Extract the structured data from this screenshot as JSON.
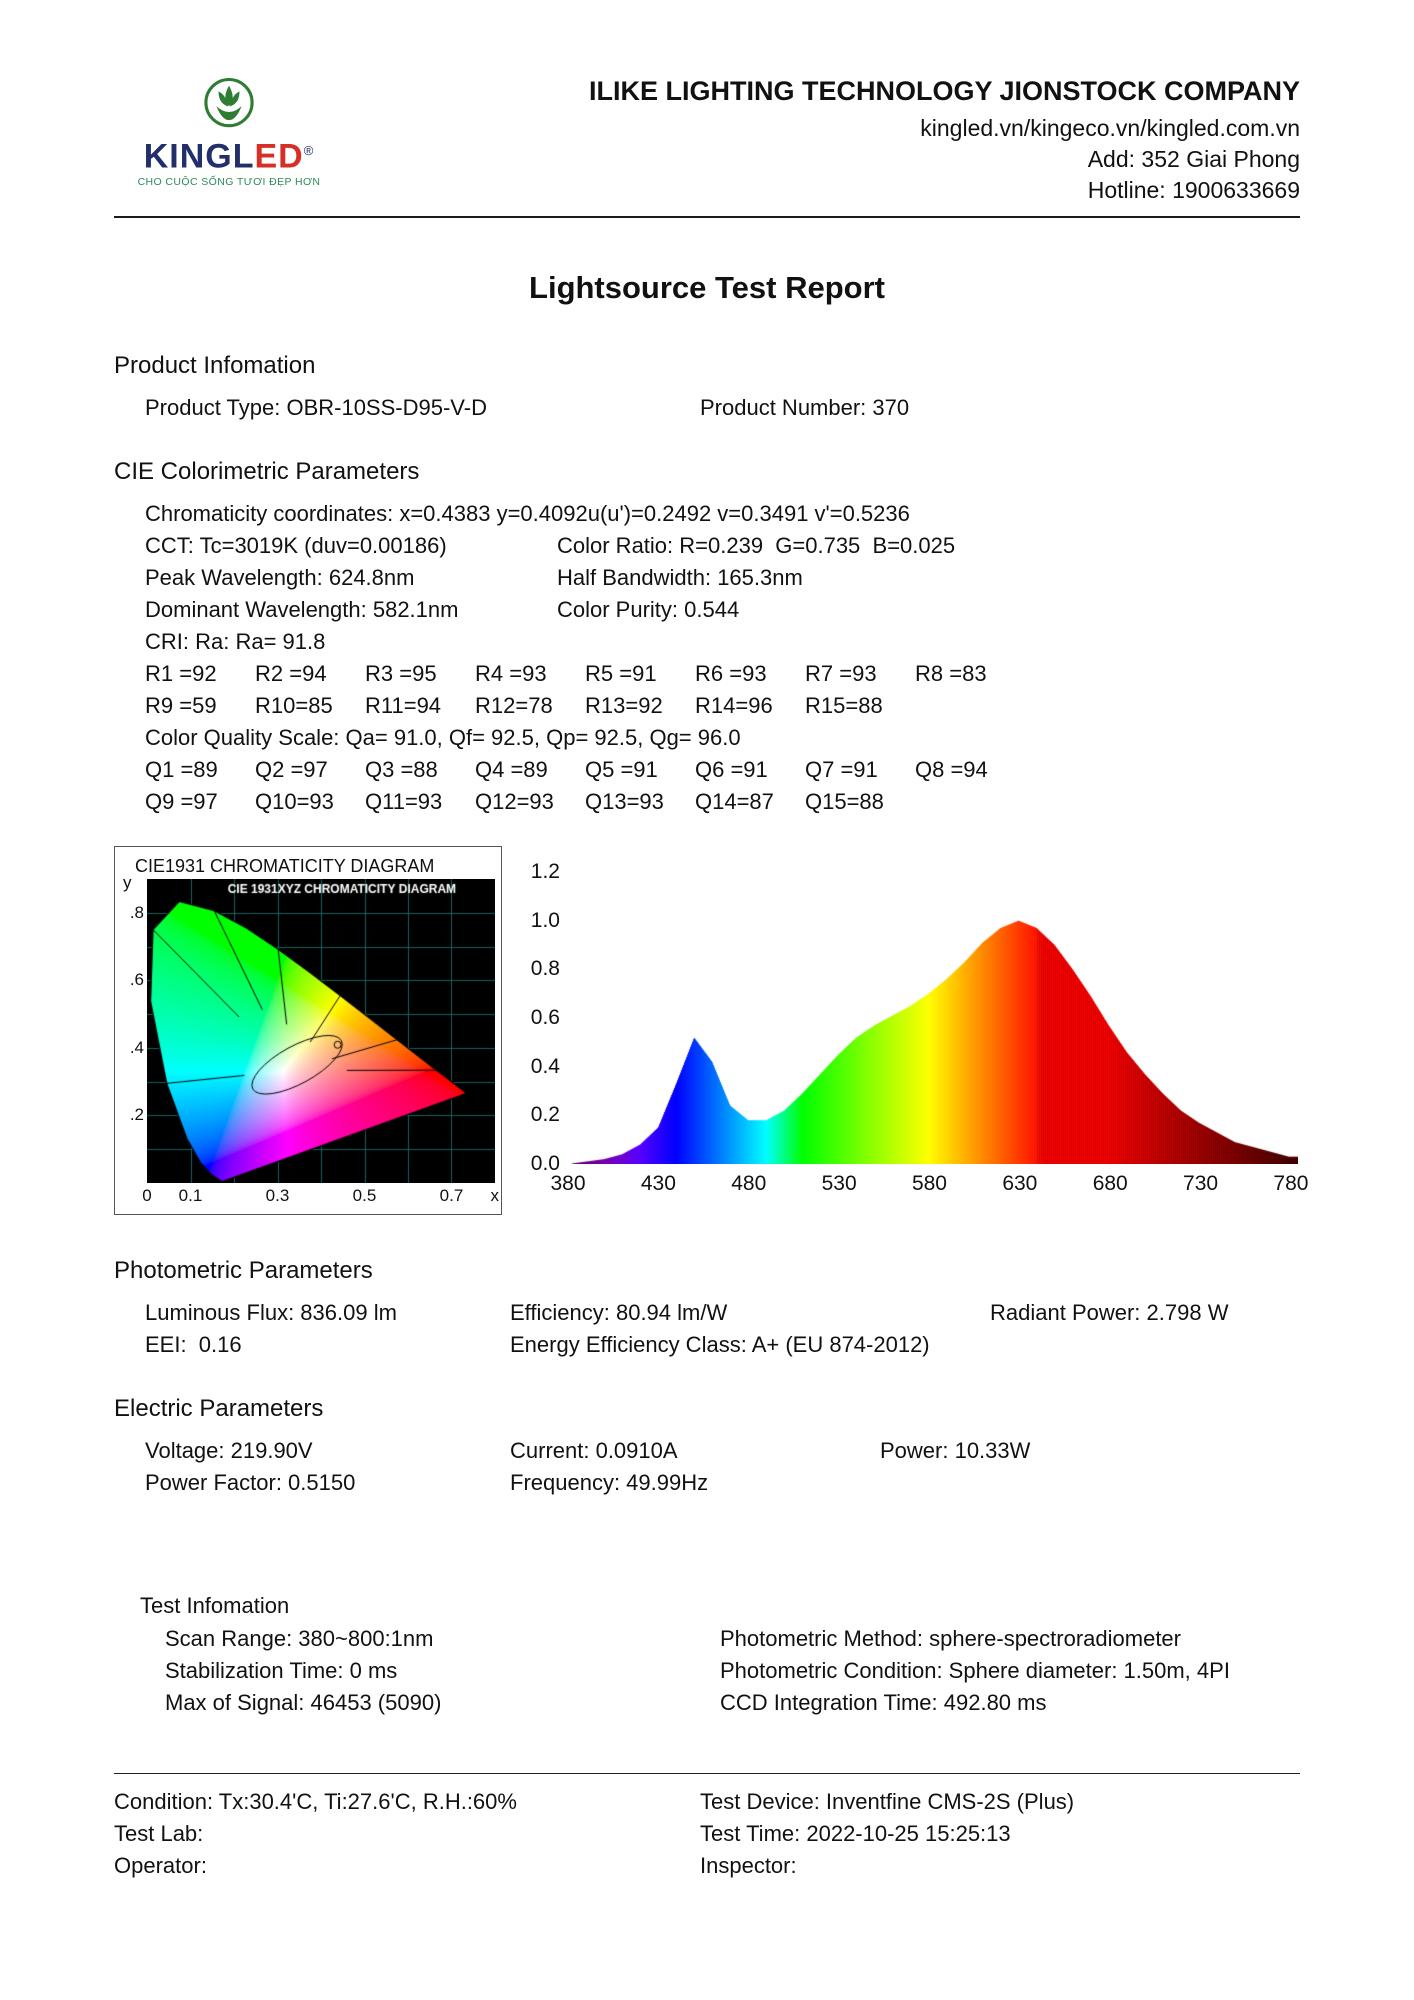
{
  "logo": {
    "brand_prefix": "KINGL",
    "brand_suffix": "ED",
    "reg": "®",
    "tagline": "CHO CUỘC SỐNG TƯƠI ĐẸP HƠN"
  },
  "header": {
    "company": "ILIKE LIGHTING TECHNOLOGY JIONSTOCK COMPANY",
    "website": "kingled.vn/kingeco.vn/kingled.com.vn",
    "address": "Add: 352 Giai Phong",
    "hotline": "Hotline: 1900633669"
  },
  "title": "Lightsource Test Report",
  "product": {
    "heading": "Product Infomation",
    "type": "Product Type: OBR-10SS-D95-V-D",
    "number": "Product Number: 370"
  },
  "cie": {
    "heading": "CIE Colorimetric Parameters",
    "chromaticity_left": "Chromaticity coordinates: x=0.4383 y=0.4092",
    "chromaticity_right": "u(u')=0.2492 v=0.3491 v'=0.5236",
    "cct": "CCT: Tc=3019K (duv=0.00186)",
    "color_ratio": "Color Ratio: R=0.239  G=0.735  B=0.025",
    "peak_wavelength": "Peak Wavelength: 624.8nm",
    "half_bandwidth": "Half Bandwidth: 165.3nm",
    "dominant_wavelength": "Dominant Wavelength: 582.1nm",
    "color_purity": "Color Purity: 0.544",
    "cri": "CRI: Ra: Ra= 91.8",
    "r_row1": [
      "R1 =92",
      "R2 =94",
      "R3 =95",
      "R4 =93",
      "R5 =91",
      "R6 =93",
      "R7 =93",
      "R8 =83"
    ],
    "r_row2": [
      "R9 =59",
      "R10=85",
      "R11=94",
      "R12=78",
      "R13=92",
      "R14=96",
      "R15=88"
    ],
    "color_quality_scale": "Color Quality Scale: Qa= 91.0, Qf= 92.5, Qp= 92.5, Qg= 96.0",
    "q_row1": [
      "Q1 =89",
      "Q2 =97",
      "Q3 =88",
      "Q4 =89",
      "Q5 =91",
      "Q6 =91",
      "Q7 =91",
      "Q8 =94"
    ],
    "q_row2": [
      "Q9 =97",
      "Q10=93",
      "Q11=93",
      "Q12=93",
      "Q13=93",
      "Q14=87",
      "Q15=88"
    ]
  },
  "photometric": {
    "heading": "Photometric Parameters",
    "luminous_flux": "Luminous Flux: 836.09 lm",
    "efficiency": "Efficiency: 80.94 lm/W",
    "radiant_power": "Radiant Power: 2.798 W",
    "eei": "EEI:  0.16",
    "energy_class": "Energy Efficiency Class: A+ (EU 874-2012)"
  },
  "electric": {
    "heading": "Electric Parameters",
    "voltage": "Voltage: 219.90V",
    "current": "Current: 0.0910A",
    "power": "Power: 10.33W",
    "power_factor": "Power Factor: 0.5150",
    "frequency": "Frequency: 49.99Hz"
  },
  "test_info": {
    "heading": "Test Infomation",
    "scan_range": "Scan Range: 380~800:1nm",
    "photometric_method": "Photometric Method: sphere-spectroradiometer",
    "stabilization_time": "Stabilization Time: 0 ms",
    "photometric_condition": "Photometric Condition: Sphere diameter: 1.50m, 4PI",
    "max_signal": "Max of Signal: 46453 (5090)",
    "ccd_time": "CCD Integration Time: 492.80 ms"
  },
  "footer": {
    "condition": "Condition: Tx:30.4'C, Ti:27.6'C, R.H.:60%",
    "test_device": "Test Device: Inventfine CMS-2S (Plus)",
    "test_lab": "Test Lab:",
    "test_time": "Test Time: 2022-10-25 15:25:13",
    "operator": "Operator:",
    "inspector": "Inspector:"
  },
  "chart_data": [
    {
      "type": "heatmap",
      "name": "cie1931-chromaticity-diagram",
      "outer_title": "CIE1931 CHROMATICITY DIAGRAM",
      "inner_title": "CIE 1931XYZ CHROMATICITY DIAGRAM",
      "xlabel": "x",
      "ylabel": "y",
      "xlim": [
        0,
        0.8
      ],
      "ylim": [
        0,
        0.9
      ],
      "grid_step": 0.1,
      "background": "#000000",
      "grid_color": "#15655e",
      "white_point": [
        0.4383,
        0.4092
      ],
      "x_ticks": [
        {
          "v": 0,
          "label": "0"
        },
        {
          "v": 0.1,
          "label": "0.1"
        },
        {
          "v": 0.3,
          "label": "0.3"
        },
        {
          "v": 0.5,
          "label": "0.5"
        },
        {
          "v": 0.7,
          "label": "0.7"
        }
      ],
      "y_ticks": [
        {
          "v": 0.2,
          "label": ".2"
        },
        {
          "v": 0.4,
          "label": ".4"
        },
        {
          "v": 0.6,
          "label": ".6"
        },
        {
          "v": 0.8,
          "label": ".8"
        }
      ],
      "locus": [
        [
          0.1741,
          0.005
        ],
        [
          0.1714,
          0.0051
        ],
        [
          0.1689,
          0.0069
        ],
        [
          0.1644,
          0.0109
        ],
        [
          0.1566,
          0.0177
        ],
        [
          0.144,
          0.0297
        ],
        [
          0.1241,
          0.0578
        ],
        [
          0.0913,
          0.1327
        ],
        [
          0.0454,
          0.295
        ],
        [
          0.0082,
          0.5384
        ],
        [
          0.0139,
          0.7502
        ],
        [
          0.0743,
          0.8338
        ],
        [
          0.1547,
          0.8059
        ],
        [
          0.2296,
          0.7543
        ],
        [
          0.3016,
          0.6923
        ],
        [
          0.3731,
          0.6245
        ],
        [
          0.4441,
          0.5547
        ],
        [
          0.5125,
          0.4866
        ],
        [
          0.5752,
          0.4242
        ],
        [
          0.627,
          0.3725
        ],
        [
          0.6658,
          0.334
        ],
        [
          0.6915,
          0.3083
        ],
        [
          0.7079,
          0.292
        ],
        [
          0.719,
          0.2809
        ],
        [
          0.726,
          0.274
        ],
        [
          0.73,
          0.27
        ],
        [
          0.7334,
          0.2666
        ],
        [
          0.7347,
          0.2653
        ]
      ]
    },
    {
      "type": "area",
      "name": "spectral-power-distribution",
      "xlim": [
        380,
        785
      ],
      "ylim": [
        0,
        1.2
      ],
      "peak_wavelength_nm": 624.8,
      "x_ticks": [
        380,
        430,
        480,
        530,
        580,
        630,
        680,
        730,
        780
      ],
      "y_ticks": [
        "1.2",
        "1.0",
        "0.8",
        "0.6",
        "0.4",
        "0.2",
        "0.0"
      ],
      "x": [
        380,
        390,
        400,
        410,
        420,
        430,
        440,
        450,
        460,
        470,
        480,
        490,
        500,
        510,
        520,
        530,
        540,
        550,
        560,
        570,
        580,
        590,
        600,
        610,
        620,
        630,
        640,
        650,
        660,
        670,
        680,
        690,
        700,
        710,
        720,
        730,
        740,
        750,
        760,
        770,
        780
      ],
      "values": [
        0,
        0.01,
        0.02,
        0.04,
        0.08,
        0.15,
        0.33,
        0.52,
        0.42,
        0.24,
        0.18,
        0.18,
        0.22,
        0.29,
        0.37,
        0.45,
        0.52,
        0.57,
        0.61,
        0.65,
        0.7,
        0.76,
        0.83,
        0.91,
        0.97,
        1.0,
        0.97,
        0.9,
        0.8,
        0.69,
        0.57,
        0.46,
        0.37,
        0.29,
        0.22,
        0.17,
        0.13,
        0.09,
        0.07,
        0.05,
        0.03
      ]
    }
  ]
}
